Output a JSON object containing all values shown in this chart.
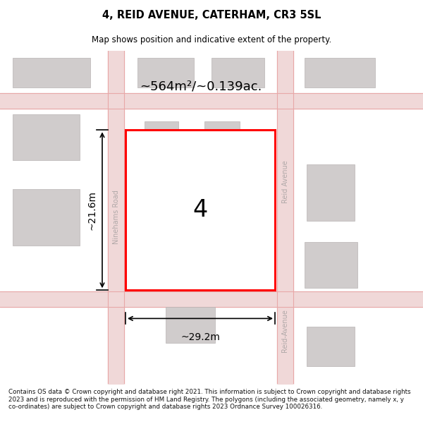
{
  "title": "4, REID AVENUE, CATERHAM, CR3 5SL",
  "subtitle": "Map shows position and indicative extent of the property.",
  "footer": "Contains OS data © Crown copyright and database right 2021. This information is subject to Crown copyright and database rights 2023 and is reproduced with the permission of HM Land Registry. The polygons (including the associated geometry, namely x, y co-ordinates) are subject to Crown copyright and database rights 2023 Ordnance Survey 100026316.",
  "map_bg": "#f7f5f5",
  "building_color": "#d0cccc",
  "building_edge": "#b8b4b4",
  "road_line_color": "#e8a8a8",
  "red_border": "#ff0000",
  "area_text": "~564m²/~0.139ac.",
  "plot_label": "4",
  "dim_width": "~29.2m",
  "dim_height": "~21.6m",
  "street_ninehams": "Ninehams Road",
  "street_reid_top": "Reid Avenue",
  "street_reid_bottom": "Reid-Avenue",
  "road_fill": "#f0d8d8",
  "road_lw": 0.8
}
